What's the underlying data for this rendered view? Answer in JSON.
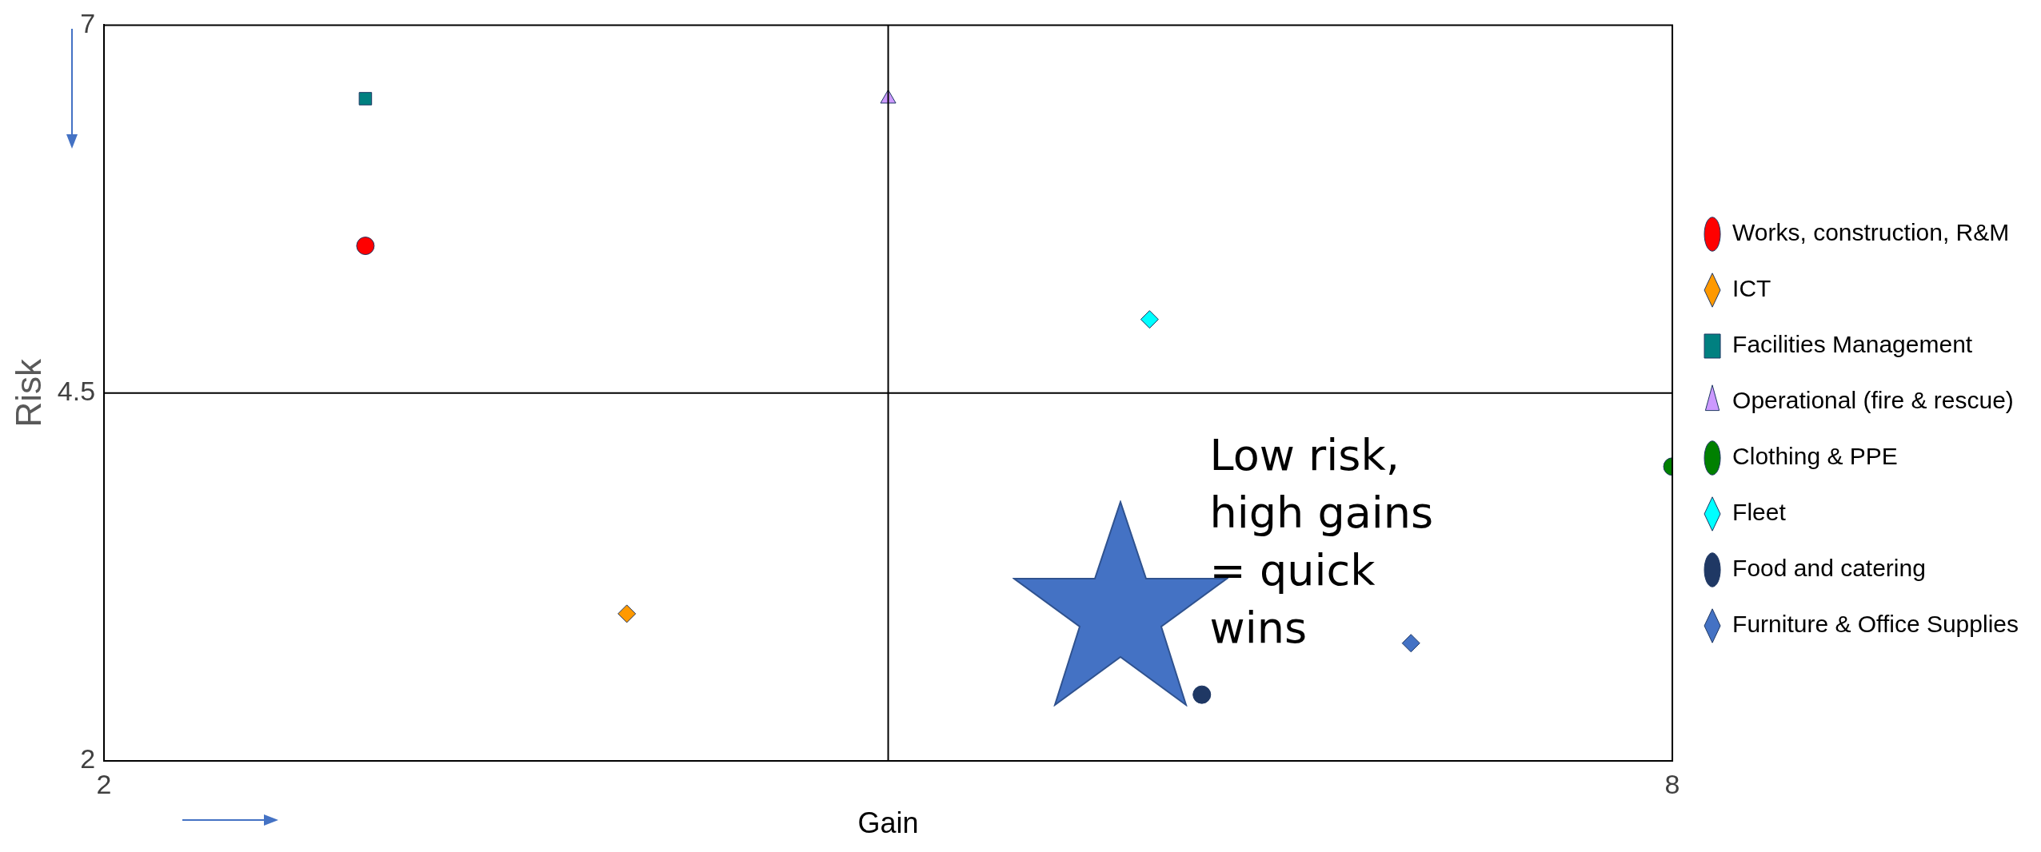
{
  "chart_data": {
    "type": "scatter",
    "xlabel": "Gain",
    "ylabel": "Risk",
    "xlim": [
      2,
      8
    ],
    "xticks": [
      2,
      8
    ],
    "ylim": [
      2,
      7
    ],
    "yticks": [
      2,
      4.5,
      7
    ],
    "grid": false,
    "legend": "right",
    "ref_lines": [
      {
        "axis": "x",
        "value": 5,
        "color": "#000000"
      },
      {
        "axis": "y",
        "value": 4.5,
        "color": "#000000"
      }
    ],
    "annotations": [
      "Low risk, high gains = quick wins"
    ],
    "series": [
      {
        "name": "Works, construction, R&M",
        "color": "#ff0000",
        "marker": "circle",
        "x": [
          3
        ],
        "values": [
          5.5
        ]
      },
      {
        "name": "ICT",
        "color": "#ff9900",
        "marker": "diamond",
        "x": [
          4
        ],
        "values": [
          3
        ]
      },
      {
        "name": "Facilities Management",
        "color": "#008080",
        "marker": "square",
        "x": [
          3
        ],
        "values": [
          6.5
        ]
      },
      {
        "name": "Operational (fire & rescue)",
        "color": "#cc99ff",
        "marker": "triangle",
        "x": [
          5
        ],
        "values": [
          6.5
        ]
      },
      {
        "name": "Clothing & PPE",
        "color": "#008000",
        "marker": "circle",
        "x": [
          8
        ],
        "values": [
          4
        ]
      },
      {
        "name": "Fleet",
        "color": "#00ffff",
        "marker": "diamond",
        "x": [
          6
        ],
        "values": [
          5
        ]
      },
      {
        "name": "Food and catering",
        "color": "#1f3864",
        "marker": "circle",
        "x": [
          6.2
        ],
        "values": [
          2.45
        ]
      },
      {
        "name": "Furniture & Office Supplies",
        "color": "#4472c4",
        "marker": "diamond",
        "x": [
          7
        ],
        "values": [
          2.8
        ]
      }
    ]
  }
}
